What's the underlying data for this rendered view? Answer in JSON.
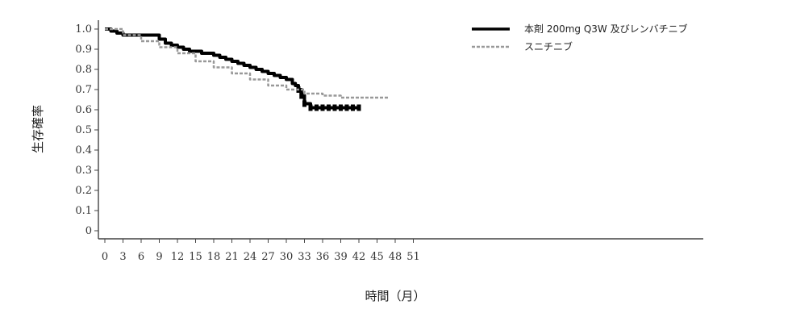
{
  "chart_data": {
    "type": "line",
    "xlabel": "時間（月）",
    "ylabel": "生存確率",
    "xlim": [
      0,
      51
    ],
    "ylim": [
      0,
      1.0
    ],
    "xticks": [
      0,
      3,
      6,
      9,
      12,
      15,
      18,
      21,
      24,
      27,
      30,
      33,
      36,
      39,
      42,
      45,
      48,
      51
    ],
    "yticks": [
      0,
      0.1,
      0.2,
      0.3,
      0.4,
      0.5,
      0.6,
      0.7,
      0.8,
      0.9,
      1.0
    ],
    "xtick_labels": [
      "0",
      "3",
      "6",
      "9",
      "12",
      "15",
      "18",
      "21",
      "24",
      "27",
      "30",
      "33",
      "36",
      "39",
      "42",
      "45",
      "48",
      "51"
    ],
    "ytick_labels": [
      "0",
      "0.1",
      "0.2",
      "0.3",
      "0.4",
      "0.5",
      "0.6",
      "0.7",
      "0.8",
      "0.9",
      "1.0"
    ],
    "legend_position": "top-right",
    "series": [
      {
        "name": "本剤 200mg Q3W 及びレンバチニブ",
        "color": "#000000",
        "style": "solid",
        "x": [
          0,
          1,
          2,
          3,
          4,
          5,
          6,
          7,
          8,
          9,
          10,
          11,
          12,
          13,
          14,
          15,
          16,
          17,
          18,
          19,
          20,
          21,
          22,
          23,
          24,
          25,
          26,
          27,
          28,
          29,
          30,
          31,
          31.5,
          32,
          32.5,
          33,
          34,
          35,
          36,
          37,
          38,
          39,
          40,
          41,
          42
        ],
        "y": [
          1.0,
          0.99,
          0.98,
          0.97,
          0.97,
          0.97,
          0.97,
          0.97,
          0.97,
          0.95,
          0.93,
          0.92,
          0.91,
          0.9,
          0.89,
          0.89,
          0.88,
          0.88,
          0.87,
          0.86,
          0.85,
          0.84,
          0.83,
          0.82,
          0.81,
          0.8,
          0.79,
          0.78,
          0.77,
          0.76,
          0.75,
          0.73,
          0.72,
          0.7,
          0.67,
          0.63,
          0.61,
          0.61,
          0.61,
          0.61,
          0.61,
          0.61,
          0.61,
          0.61,
          0.61
        ]
      },
      {
        "name": "スニチニブ",
        "color": "#999999",
        "style": "dashed",
        "x": [
          0,
          3,
          6,
          9,
          12,
          15,
          18,
          21,
          24,
          27,
          30,
          33,
          36,
          39,
          42,
          45,
          47
        ],
        "y": [
          1.0,
          0.97,
          0.94,
          0.91,
          0.88,
          0.84,
          0.81,
          0.78,
          0.75,
          0.72,
          0.7,
          0.68,
          0.67,
          0.66,
          0.66,
          0.66,
          0.66
        ]
      }
    ]
  }
}
